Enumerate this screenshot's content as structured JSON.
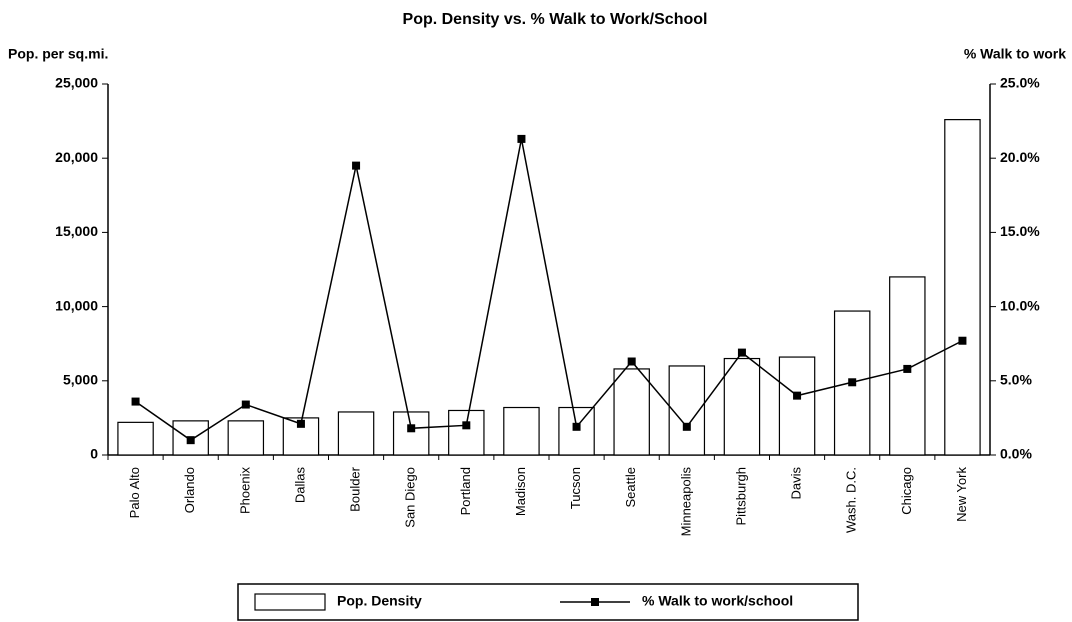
{
  "chart_data": {
    "type": "bar-line",
    "title": "Pop. Density vs. % Walk to Work/School",
    "y_label": "Pop. per sq.mi.",
    "y2_label": "% Walk to work",
    "categories": [
      "Palo Alto",
      "Orlando",
      "Phoenix",
      "Dallas",
      "Boulder",
      "San Diego",
      "Portland",
      "Madison",
      "Tucson",
      "Seattle",
      "Minneapolis",
      "Pittsburgh",
      "Davis",
      "Wash. D.C.",
      "Chicago",
      "New York"
    ],
    "series": [
      {
        "name": "Pop. Density",
        "type": "bar",
        "color": "#000000",
        "values": [
          2200,
          2300,
          2300,
          2500,
          2900,
          2900,
          3000,
          3200,
          3200,
          5800,
          6000,
          6500,
          6600,
          9700,
          12000,
          22600
        ]
      },
      {
        "name": "% Walk to work/school",
        "type": "line",
        "axis": "y2",
        "color": "#000000",
        "values": [
          3.6,
          1.0,
          3.4,
          2.1,
          19.5,
          1.8,
          2.0,
          21.3,
          1.9,
          6.3,
          1.9,
          6.9,
          4.0,
          4.9,
          5.8,
          7.7
        ]
      }
    ],
    "ylim": [
      0,
      25000
    ],
    "yticks": [
      0,
      {
        "value": 5000,
        "label": "5,000"
      },
      {
        "value": 10000,
        "label": "10,000"
      },
      {
        "value": 15000,
        "label": "15,000"
      },
      {
        "value": 20000,
        "label": "20,000"
      },
      {
        "value": 25000,
        "label": "25,000"
      }
    ],
    "y2lim": [
      0,
      25
    ],
    "y2ticks": [
      {
        "value": 0,
        "label": "0.0%"
      },
      {
        "value": 5,
        "label": "5.0%"
      },
      {
        "value": 10,
        "label": "10.0%"
      },
      {
        "value": 15,
        "label": "15.0%"
      },
      {
        "value": 20,
        "label": "20.0%"
      },
      {
        "value": 25,
        "label": "25.0%"
      }
    ],
    "grid": false,
    "legend": "bottom"
  }
}
